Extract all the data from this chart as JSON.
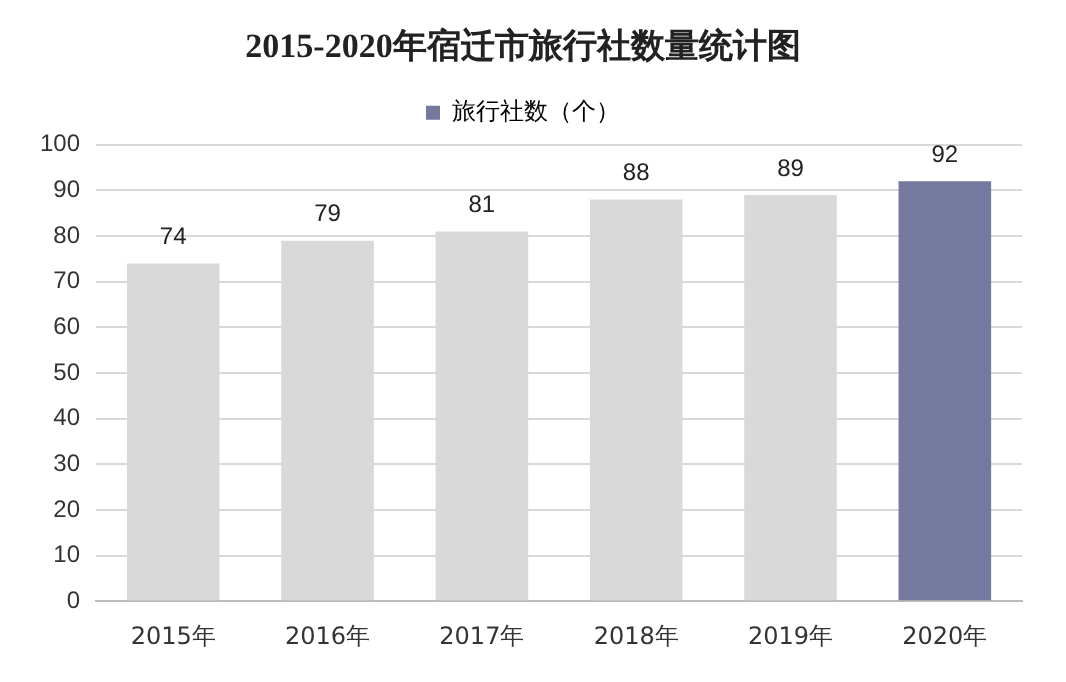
{
  "chart_data": {
    "type": "bar",
    "title": "2015-2020年宿迁市旅行社数量统计图",
    "categories": [
      "2015年",
      "2016年",
      "2017年",
      "2018年",
      "2019年",
      "2020年"
    ],
    "series": [
      {
        "name": "旅行社数（个）",
        "color": "#75799d",
        "colors": [
          "#d9d9d9",
          "#d9d9d9",
          "#d9d9d9",
          "#d9d9d9",
          "#d9d9d9",
          "#75799d"
        ],
        "values": [
          74,
          79,
          81,
          88,
          89,
          92
        ]
      }
    ],
    "ylim": [
      0,
      100
    ],
    "yticks": [
      0,
      10,
      20,
      30,
      40,
      50,
      60,
      70,
      80,
      90,
      100
    ],
    "grid": "y",
    "legend": "top",
    "data_labels": true
  }
}
